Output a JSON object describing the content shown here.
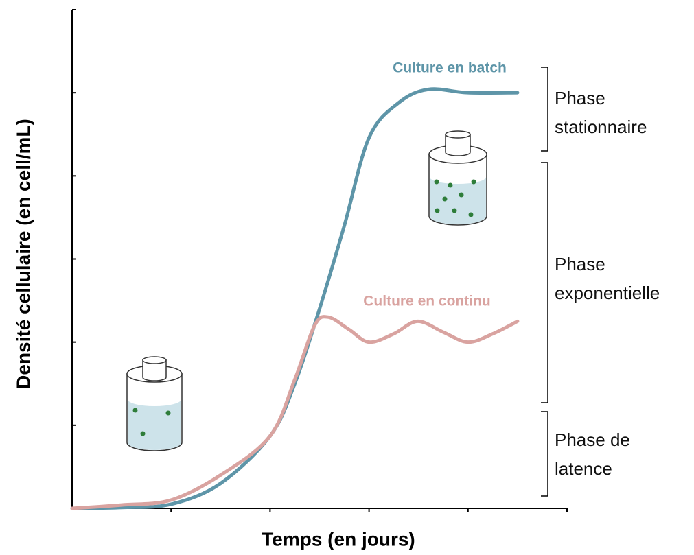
{
  "chart_data": {
    "type": "line",
    "xlabel": "Temps (en jours)",
    "ylabel": "Densité cellulaire (en cell/mL)",
    "xlim": [
      0,
      5
    ],
    "ylim": [
      0,
      6
    ],
    "xticks": [
      1,
      2,
      3,
      4
    ],
    "yticks": [
      1,
      2,
      3,
      4,
      5
    ],
    "series": [
      {
        "name": "Culture en batch",
        "color": "#5e95a8",
        "x": [
          0,
          0.5,
          1,
          1.5,
          2,
          2.25,
          2.5,
          2.75,
          3,
          3.3,
          3.6,
          4,
          4.5
        ],
        "values": [
          0,
          0.01,
          0.05,
          0.3,
          0.87,
          1.5,
          2.4,
          3.4,
          4.46,
          4.88,
          5.04,
          5.0,
          5.0
        ]
      },
      {
        "name": "Culture en continu",
        "color": "#d9a3a0",
        "x": [
          0,
          0.5,
          1,
          1.5,
          2,
          2.25,
          2.45,
          2.59,
          2.8,
          3,
          3.25,
          3.49,
          3.75,
          4,
          4.25,
          4.5
        ],
        "values": [
          0,
          0.04,
          0.1,
          0.4,
          0.87,
          1.55,
          2.2,
          2.3,
          2.15,
          2.0,
          2.1,
          2.25,
          2.12,
          2.0,
          2.1,
          2.25
        ]
      }
    ],
    "phases": [
      {
        "lines": [
          "Phase",
          "stationnaire"
        ]
      },
      {
        "lines": [
          "Phase",
          "exponentielle"
        ]
      },
      {
        "lines": [
          "Phase de",
          "latence"
        ]
      }
    ]
  }
}
